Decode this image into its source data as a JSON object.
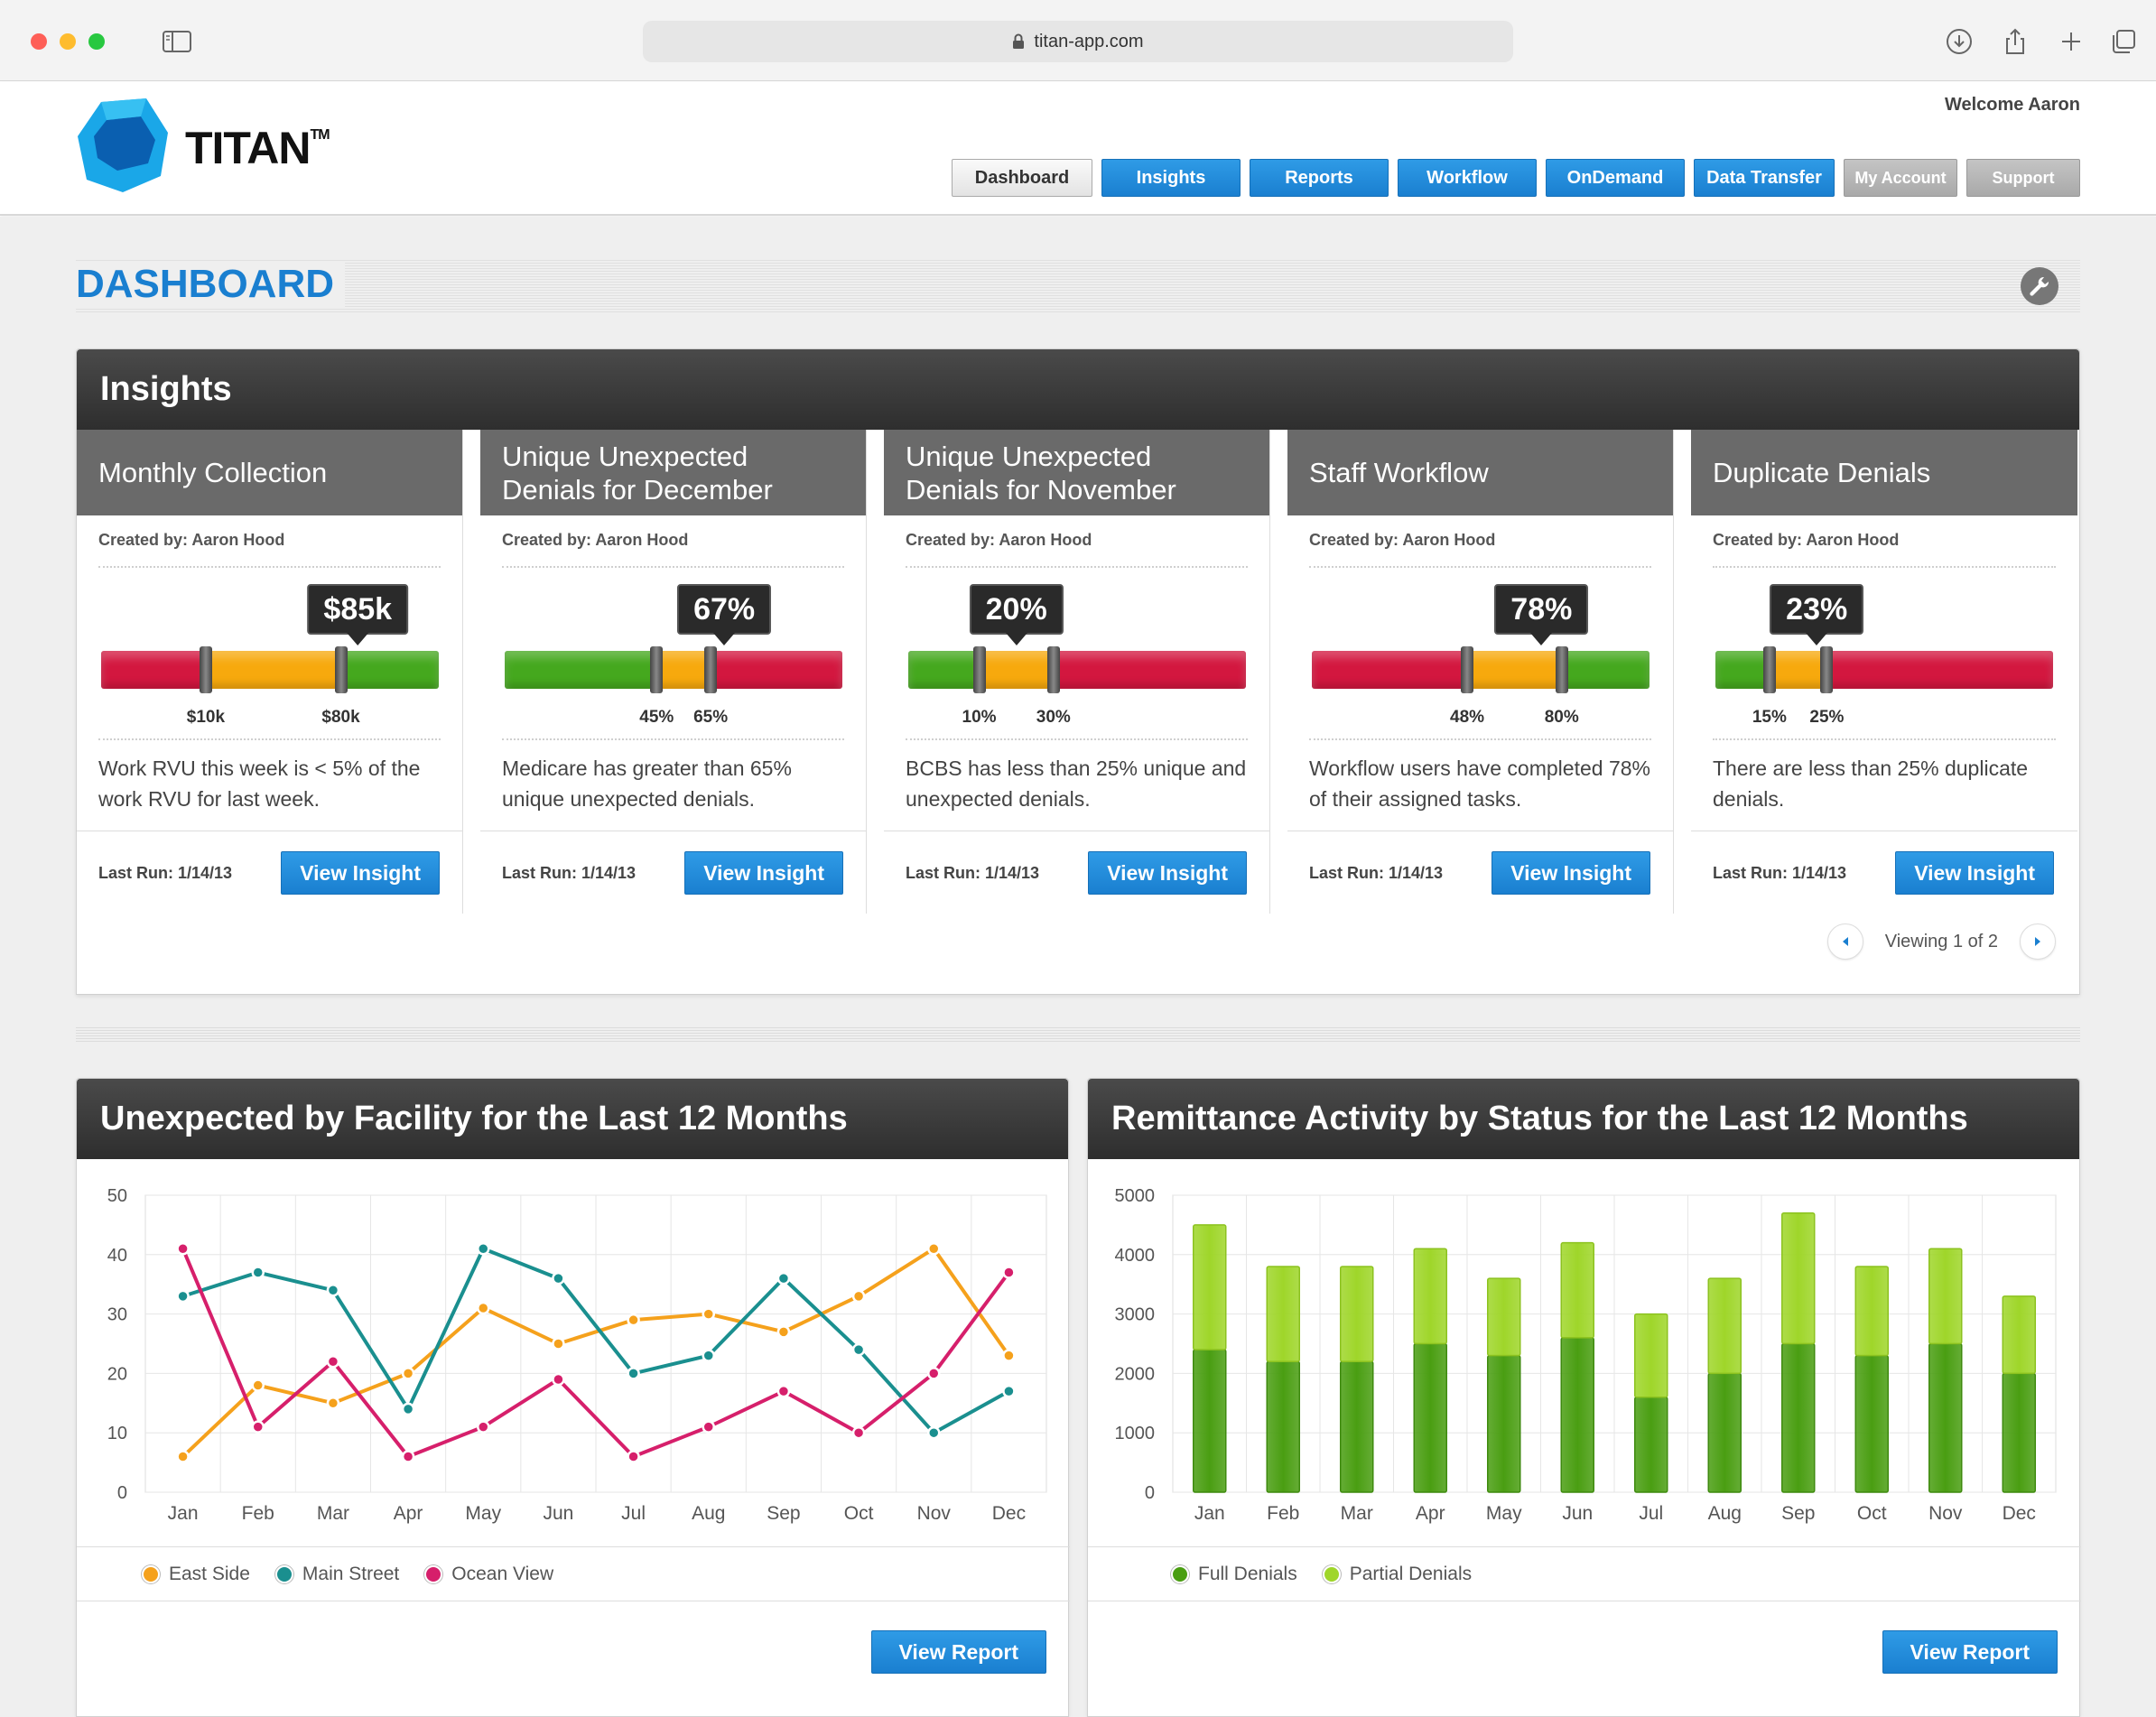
{
  "browser": {
    "url": "titan-app.com"
  },
  "header": {
    "logo_text": "TITAN",
    "logo_tm": "TM",
    "welcome": "Welcome Aaron",
    "nav": [
      {
        "label": "Dashboard",
        "state": "active"
      },
      {
        "label": "Insights",
        "state": "primary"
      },
      {
        "label": "Reports",
        "state": "primary"
      },
      {
        "label": "Workflow",
        "state": "primary"
      },
      {
        "label": "OnDemand",
        "state": "primary"
      },
      {
        "label": "Data Transfer",
        "state": "primary"
      },
      {
        "label": "My Account",
        "state": "muted"
      },
      {
        "label": "Support",
        "state": "muted"
      }
    ]
  },
  "dashboard": {
    "title": "DASHBOARD"
  },
  "insights": {
    "title": "Insights",
    "pager": "Viewing 1 of 2",
    "cards": [
      {
        "title": "Monthly Collection",
        "created_by": "Created by: Aaron Hood",
        "value": "$85k",
        "gauge": "red-yellow-green",
        "low_label": "$10k",
        "high_label": "$80k",
        "low_pos": 0.31,
        "high_pos": 0.71,
        "value_pos": 0.76,
        "description": "Work RVU this week is < 5% of the work RVU for last week.",
        "last_run": "Last Run: 1/14/13",
        "button": "View Insight"
      },
      {
        "title": "Unique Unexpected Denials for December",
        "created_by": "Created by: Aaron Hood",
        "value": "67%",
        "gauge": "green-yellow-red",
        "low_label": "45%",
        "high_label": "65%",
        "low_pos": 0.45,
        "high_pos": 0.61,
        "value_pos": 0.65,
        "description": "Medicare has greater than 65% unique unexpected denials.",
        "last_run": "Last Run: 1/14/13",
        "button": "View Insight"
      },
      {
        "title": "Unique Unexpected Denials for November",
        "created_by": "Created by: Aaron Hood",
        "value": "20%",
        "gauge": "green-yellow-red",
        "low_label": "10%",
        "high_label": "30%",
        "low_pos": 0.21,
        "high_pos": 0.43,
        "value_pos": 0.32,
        "description": "BCBS has less than 25% unique and unexpected denials.",
        "last_run": "Last Run: 1/14/13",
        "button": "View Insight"
      },
      {
        "title": "Staff Workflow",
        "created_by": "Created by: Aaron Hood",
        "value": "78%",
        "gauge": "red-yellow-green",
        "low_label": "48%",
        "high_label": "80%",
        "low_pos": 0.46,
        "high_pos": 0.74,
        "value_pos": 0.68,
        "description": "Workflow users have completed 78% of their assigned tasks.",
        "last_run": "Last Run: 1/14/13",
        "button": "View Insight"
      },
      {
        "title": "Duplicate Denials",
        "created_by": "Created by: Aaron Hood",
        "value": "23%",
        "gauge": "green-yellow-red",
        "low_label": "15%",
        "high_label": "25%",
        "low_pos": 0.16,
        "high_pos": 0.33,
        "value_pos": 0.3,
        "description": "There are less than 25% duplicate denials.",
        "last_run": "Last Run: 1/14/13",
        "button": "View Insight"
      }
    ]
  },
  "facility_panel": {
    "title": "Unexpected by Facility for the Last 12 Months",
    "button": "View Report"
  },
  "remittance_panel": {
    "title": "Remittance Activity by Status for the Last 12 Months",
    "button": "View Report"
  },
  "chart_data": [
    {
      "type": "line",
      "title": "Unexpected by Facility for the Last 12 Months",
      "categories": [
        "Jan",
        "Feb",
        "Mar",
        "Apr",
        "May",
        "Jun",
        "Jul",
        "Aug",
        "Sep",
        "Oct",
        "Nov",
        "Dec"
      ],
      "ylim": [
        0,
        50
      ],
      "yticks": [
        0,
        10,
        20,
        30,
        40,
        50
      ],
      "grid": true,
      "legend": "bottom",
      "series": [
        {
          "name": "East Side",
          "color": "#f5a11c",
          "values": [
            6,
            18,
            15,
            20,
            31,
            25,
            29,
            30,
            27,
            33,
            41,
            23
          ]
        },
        {
          "name": "Main Street",
          "color": "#1a8f8f",
          "values": [
            33,
            37,
            34,
            14,
            41,
            36,
            20,
            23,
            36,
            24,
            10,
            17
          ]
        },
        {
          "name": "Ocean View",
          "color": "#d61f6b",
          "values": [
            41,
            11,
            22,
            6,
            11,
            19,
            6,
            11,
            17,
            10,
            20,
            37
          ]
        }
      ]
    },
    {
      "type": "bar",
      "title": "Remittance Activity by Status for the Last 12 Months",
      "stacked": true,
      "categories": [
        "Jan",
        "Feb",
        "Mar",
        "Apr",
        "May",
        "Jun",
        "Jul",
        "Aug",
        "Sep",
        "Oct",
        "Nov",
        "Dec"
      ],
      "ylim": [
        0,
        5000
      ],
      "yticks": [
        0,
        1000,
        2000,
        3000,
        4000,
        5000
      ],
      "grid": true,
      "legend": "bottom",
      "series": [
        {
          "name": "Full Denials",
          "color": "#4a9e12",
          "values": [
            2400,
            2200,
            2200,
            2500,
            2300,
            2600,
            1600,
            2000,
            2500,
            2300,
            2500,
            2000
          ]
        },
        {
          "name": "Partial Denials",
          "color": "#9fd62a",
          "values": [
            2100,
            1600,
            1600,
            1600,
            1300,
            1600,
            1400,
            1600,
            2200,
            1500,
            1600,
            1300
          ]
        }
      ]
    }
  ]
}
